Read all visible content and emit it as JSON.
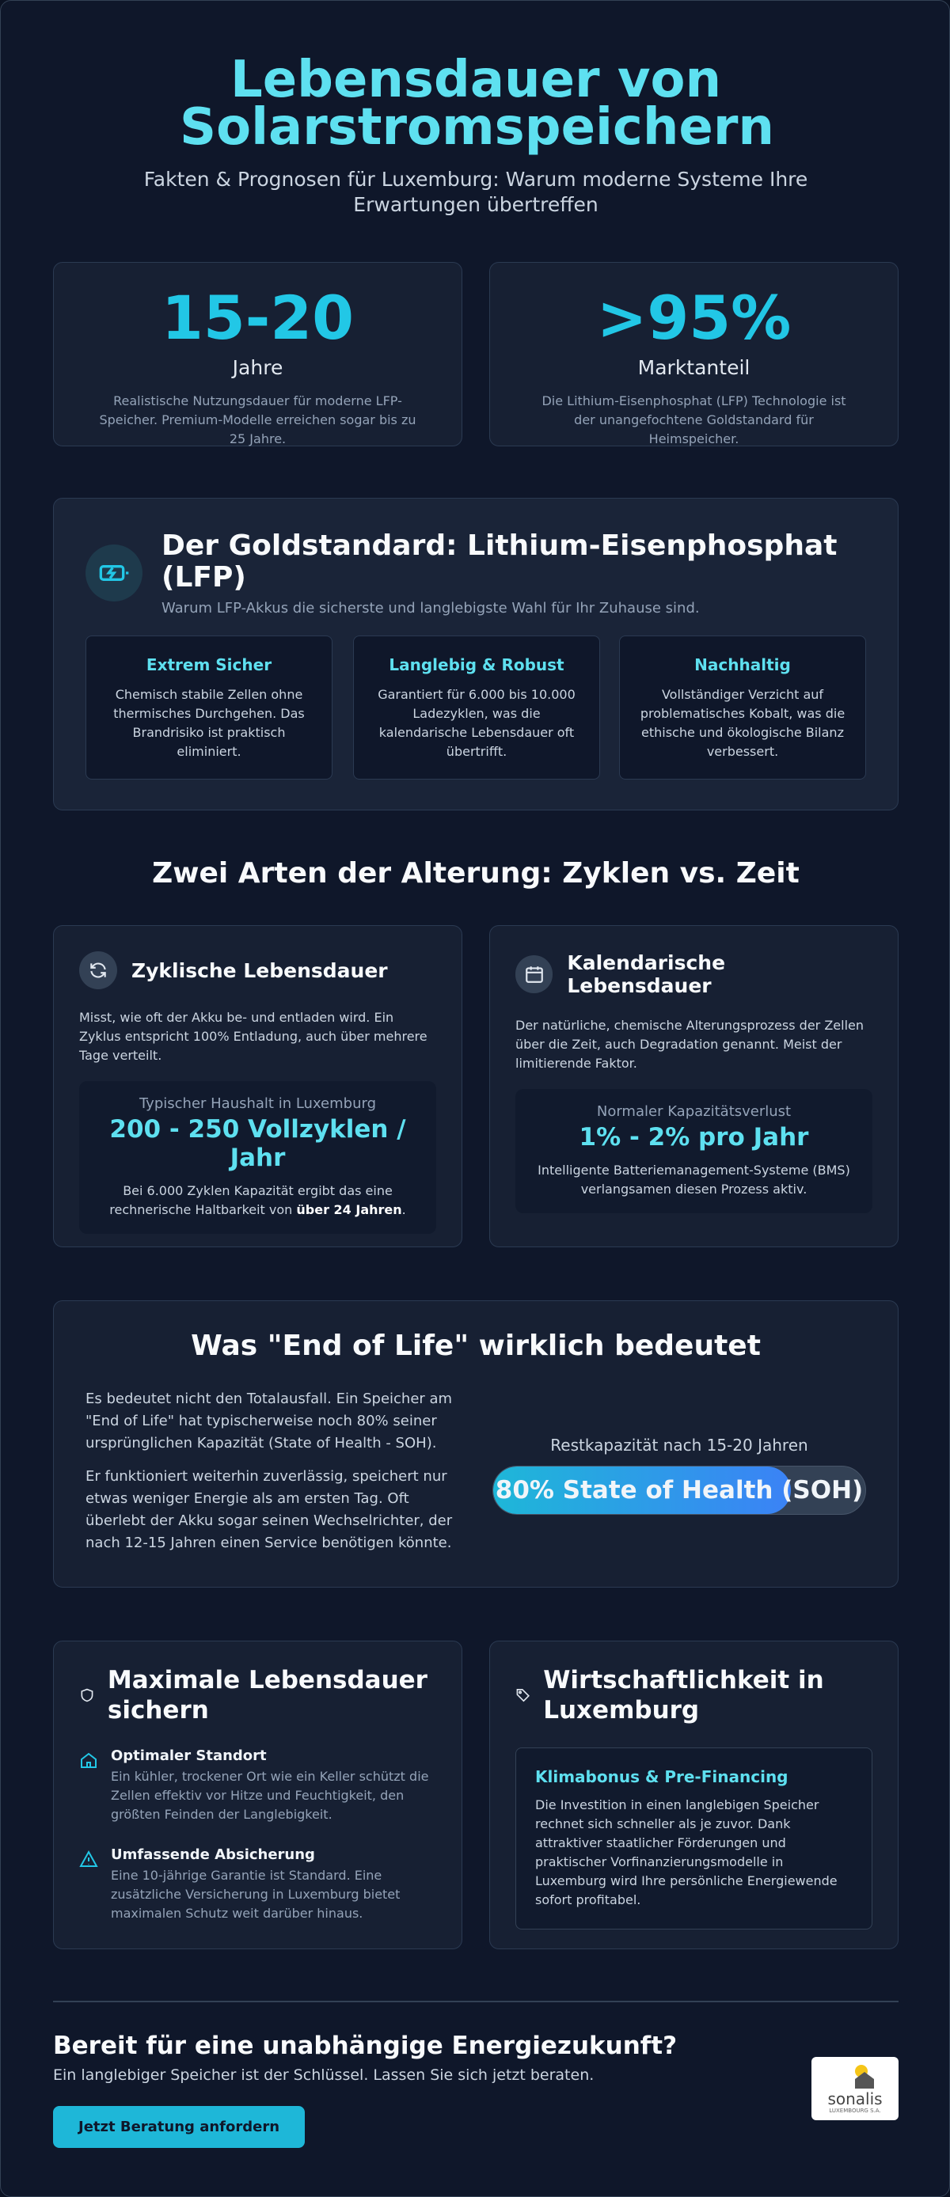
{
  "header": {
    "title": "Lebensdauer von Solarstromspeichern",
    "subtitle": "Fakten & Prognosen für Luxemburg: Warum moderne Systeme Ihre Erwartungen übertreffen"
  },
  "stats": [
    {
      "value": "15-20",
      "label": "Jahre",
      "text": "Realistische Nutzungsdauer für moderne LFP-Speicher. Premium-Modelle erreichen sogar bis zu 25 Jahre."
    },
    {
      "value": ">95%",
      "label": "Marktanteil",
      "text": "Die Lithium-Eisenphosphat (LFP) Technologie ist der unangefochtene Goldstandard für Heimspeicher."
    }
  ],
  "lfp": {
    "title": "Der Goldstandard: Lithium-Eisenphosphat (LFP)",
    "subtitle": "Warum LFP-Akkus die sicherste und langlebigste Wahl für Ihr Zuhause sind.",
    "features": [
      {
        "title": "Extrem Sicher",
        "text": "Chemisch stabile Zellen ohne thermisches Durchgehen. Das Brandrisiko ist praktisch eliminiert."
      },
      {
        "title": "Langlebig & Robust",
        "text": "Garantiert für 6.000 bis 10.000 Ladezyklen, was die kalendarische Lebensdauer oft übertrifft."
      },
      {
        "title": "Nachhaltig",
        "text": "Vollständiger Verzicht auf problematisches Kobalt, was die ethische und ökologische Bilanz verbessert."
      }
    ]
  },
  "aging": {
    "title": "Zwei Arten der Alterung: Zyklen vs. Zeit",
    "cards": [
      {
        "title": "Zyklische Lebensdauer",
        "text": "Misst, wie oft der Akku be- und entladen wird. Ein Zyklus entspricht 100% Entladung, auch über mehrere Tage verteilt.",
        "box_label": "Typischer Haushalt in Luxemburg",
        "box_value": "200 - 250 Vollzyklen / Jahr",
        "box_text": "Bei 6.000 Zyklen Kapazität ergibt das eine rechnerische Haltbarkeit von ",
        "box_text_bold": "über 24 Jahren",
        "box_text_end": "."
      },
      {
        "title": "Kalendarische Lebensdauer",
        "text": "Der natürliche, chemische Alterungsprozess der Zellen über die Zeit, auch Degradation genannt. Meist der limitierende Faktor.",
        "box_label": "Normaler Kapazitätsverlust",
        "box_value": "1% - 2% pro Jahr",
        "box_text": "Intelligente Batteriemanagement-Systeme (BMS) verlangsamen diesen Prozess aktiv."
      }
    ]
  },
  "eol": {
    "title": "Was \"End of Life\" wirklich bedeutet",
    "paragraphs": [
      "Es bedeutet nicht den Totalausfall. Ein Speicher am \"End of Life\" hat typischerweise noch 80% seiner ursprünglichen Kapazität (State of Health - SOH).",
      "Er funktioniert weiterhin zuverlässig, speichert nur etwas weniger Energie als am ersten Tag. Oft überlebt der Akku sogar seinen Wechselrichter, der nach 12-15 Jahren einen Service benötigen könnte."
    ],
    "bar_caption": "Restkapazität nach 15-20 Jahren",
    "bar_label": "80% State of Health (SOH)",
    "bar_value": 80
  },
  "tips": {
    "title": "Maximale Lebensdauer sichern",
    "items": [
      {
        "title": "Optimaler Standort",
        "text": "Ein kühler, trockener Ort wie ein Keller schützt die Zellen effektiv vor Hitze und Feuchtigkeit, den größten Feinden der Langlebigkeit."
      },
      {
        "title": "Umfassende Absicherung",
        "text": "Eine 10-jährige Garantie ist Standard. Eine zusätzliche Versicherung in Luxemburg bietet maximalen Schutz weit darüber hinaus."
      }
    ]
  },
  "economy": {
    "title": "Wirtschaftlichkeit in Luxemburg",
    "box_title": "Klimabonus & Pre-Financing",
    "box_text": "Die Investition in einen langlebigen Speicher rechnet sich schneller als je zuvor. Dank attraktiver staatlicher Förderungen und praktischer Vorfinanzierungsmodelle in Luxemburg wird Ihre persönliche Energiewende sofort profitabel."
  },
  "cta": {
    "title": "Bereit für eine unabhängige Energiezukunft?",
    "text": "Ein langlebiger Speicher ist der Schlüssel. Lassen Sie sich jetzt beraten.",
    "button": "Jetzt Beratung anfordern"
  },
  "logo": {
    "name": "sonalis",
    "sub": "LUXEMBOURG S.A."
  }
}
